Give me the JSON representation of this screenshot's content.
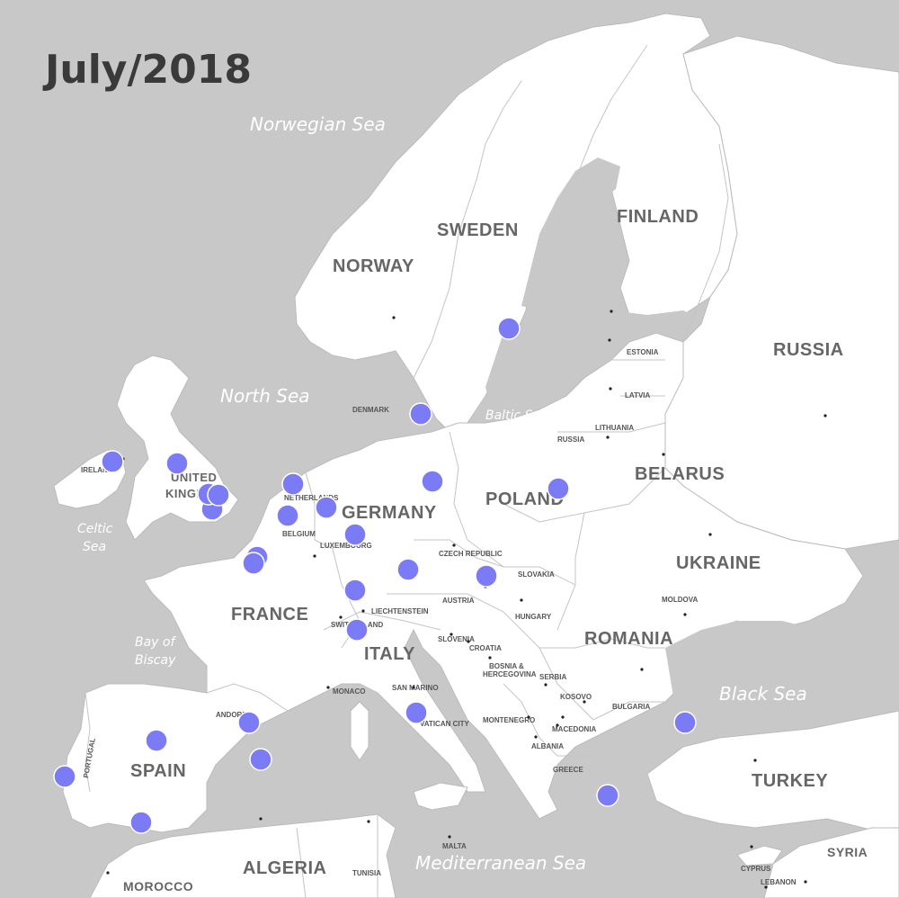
{
  "title": "July/2018",
  "colors": {
    "sea": "#c8c8c9",
    "land": "#ffffff",
    "marker": "#7b7bf5",
    "title": "#3a3a3a"
  },
  "countries": {
    "sweden": "SWEDEN",
    "finland": "FINLAND",
    "norway": "NORWAY",
    "russia": "RUSSIA",
    "belarus": "BELARUS",
    "poland": "POLAND",
    "germany": "GERMANY",
    "ukraine": "UKRAINE",
    "france": "FRANCE",
    "romania": "ROMANIA",
    "italy": "ITALY",
    "spain": "SPAIN",
    "turkey": "TURKEY",
    "algeria": "ALGERIA",
    "morocco": "MOROCCO",
    "syria": "SYRIA",
    "uk_line1": "UNITED",
    "uk_line2": "KINGDOM",
    "ireland": "IRELAND",
    "denmark": "DENMARK",
    "estonia": "ESTONIA",
    "latvia": "LATVIA",
    "lithuania": "LITHUANIA",
    "russia_kal": "RUSSIA",
    "netherlands": "NETHERLANDS",
    "belgium": "BELGIUM",
    "luxembourg": "LUXEMBOURG",
    "czech": "CZECH REPUBLIC",
    "slovakia": "SLOVAKIA",
    "austria": "AUSTRIA",
    "hungary": "HUNGARY",
    "moldova": "MOLDOVA",
    "liechtenstein": "LIECHTENSTEIN",
    "switzerland": "SWITZERLAND",
    "slovenia": "SLOVENIA",
    "croatia": "CROATIA",
    "bosnia_1": "BOSNIA &",
    "bosnia_2": "HERCEGOVINA",
    "serbia": "SERBIA",
    "kosovo": "KOSOVO",
    "bulgaria": "BULGARIA",
    "monaco": "MONACO",
    "san_marino": "SAN MARINO",
    "montenegro": "MONTENEGRO",
    "macedonia": "MACEDONIA",
    "albania": "ALBANIA",
    "vatican": "VATICAN CITY",
    "greece": "GREECE",
    "andorra": "ANDORRA",
    "portugal": "PORTUGAL",
    "tunisia": "TUNISIA",
    "malta": "MALTA",
    "cyprus": "CYPRUS",
    "lebanon": "LEBANON"
  },
  "seas": {
    "norwegian_sea": "Norwegian Sea",
    "north_sea": "North Sea",
    "baltic_sea": "Baltic Sea",
    "celtic_sea_1": "Celtic",
    "celtic_sea_2": "Sea",
    "biscay_1": "Bay of",
    "biscay_2": "Biscay",
    "black_sea": "Black Sea",
    "mediterranean_sea": "Mediterranean Sea"
  },
  "markers": [
    {
      "name": "stockholm"
    },
    {
      "name": "copenhagen"
    },
    {
      "name": "dublin"
    },
    {
      "name": "manchester"
    },
    {
      "name": "london-1"
    },
    {
      "name": "london-2"
    },
    {
      "name": "london-3"
    },
    {
      "name": "amsterdam"
    },
    {
      "name": "brussels"
    },
    {
      "name": "dusseldorf"
    },
    {
      "name": "berlin"
    },
    {
      "name": "warsaw"
    },
    {
      "name": "frankfurt"
    },
    {
      "name": "paris-1"
    },
    {
      "name": "paris-2"
    },
    {
      "name": "munich"
    },
    {
      "name": "vienna"
    },
    {
      "name": "zurich"
    },
    {
      "name": "milan"
    },
    {
      "name": "rome"
    },
    {
      "name": "barcelona"
    },
    {
      "name": "mallorca"
    },
    {
      "name": "madrid"
    },
    {
      "name": "lisbon"
    },
    {
      "name": "malaga"
    },
    {
      "name": "athens"
    },
    {
      "name": "crimea"
    }
  ]
}
